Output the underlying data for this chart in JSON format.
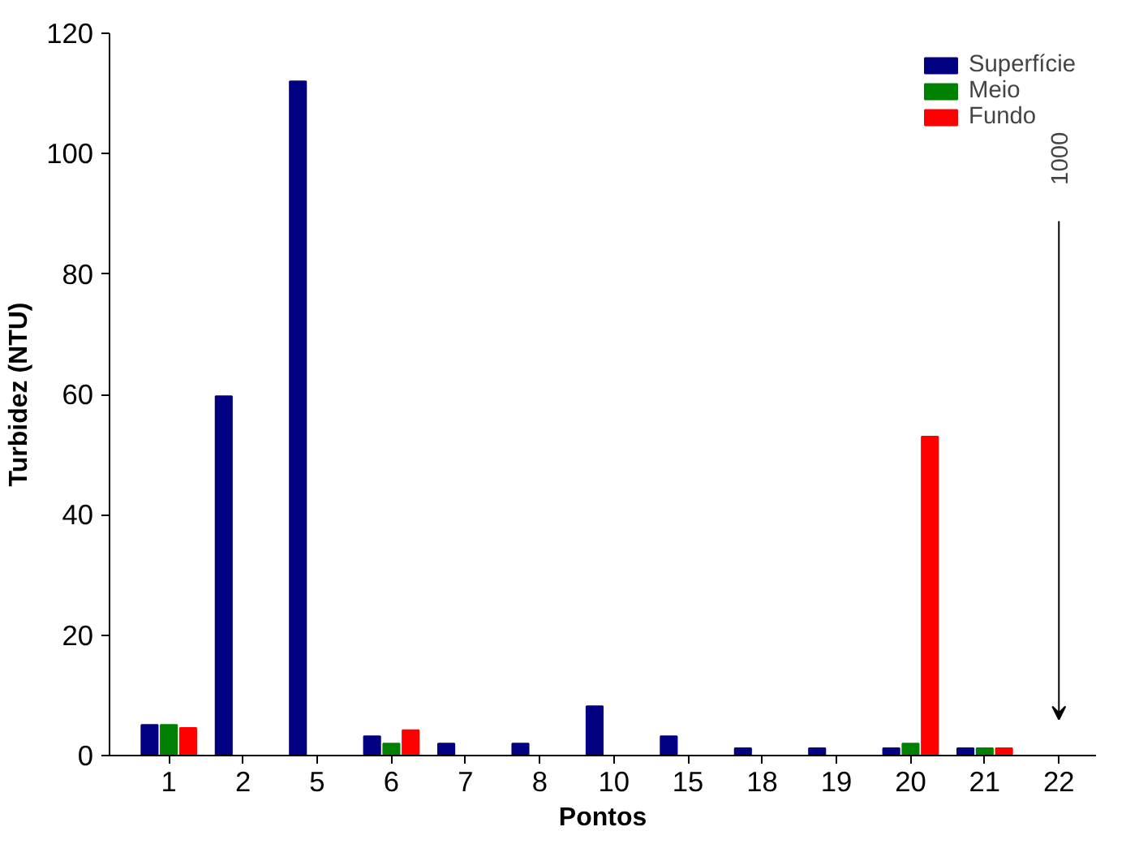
{
  "chart_data": {
    "type": "bar",
    "xlabel": "Pontos",
    "ylabel": "Turbidez (NTU)",
    "categories": [
      "1",
      "2",
      "5",
      "6",
      "7",
      "8",
      "10",
      "15",
      "18",
      "19",
      "20",
      "21",
      "22"
    ],
    "series": [
      {
        "name": "Superfície",
        "color": "#000080",
        "values": [
          5.1,
          59.7,
          112,
          3.2,
          2,
          2,
          8.2,
          3.2,
          1.2,
          1.2,
          1.2,
          1.2,
          null
        ]
      },
      {
        "name": "Meio",
        "color": "#008000",
        "values": [
          5.1,
          null,
          null,
          2,
          null,
          null,
          null,
          null,
          null,
          null,
          2,
          1.2,
          null
        ]
      },
      {
        "name": "Fundo",
        "color": "#ff0000",
        "values": [
          4.6,
          null,
          null,
          4.2,
          null,
          null,
          null,
          null,
          null,
          null,
          53,
          1.2,
          null
        ]
      }
    ],
    "ylim": [
      0,
      120
    ],
    "yticks": [
      0,
      20,
      40,
      60,
      80,
      100,
      120
    ],
    "grid": false,
    "legend": "top right",
    "annotations": [
      "1000"
    ]
  }
}
